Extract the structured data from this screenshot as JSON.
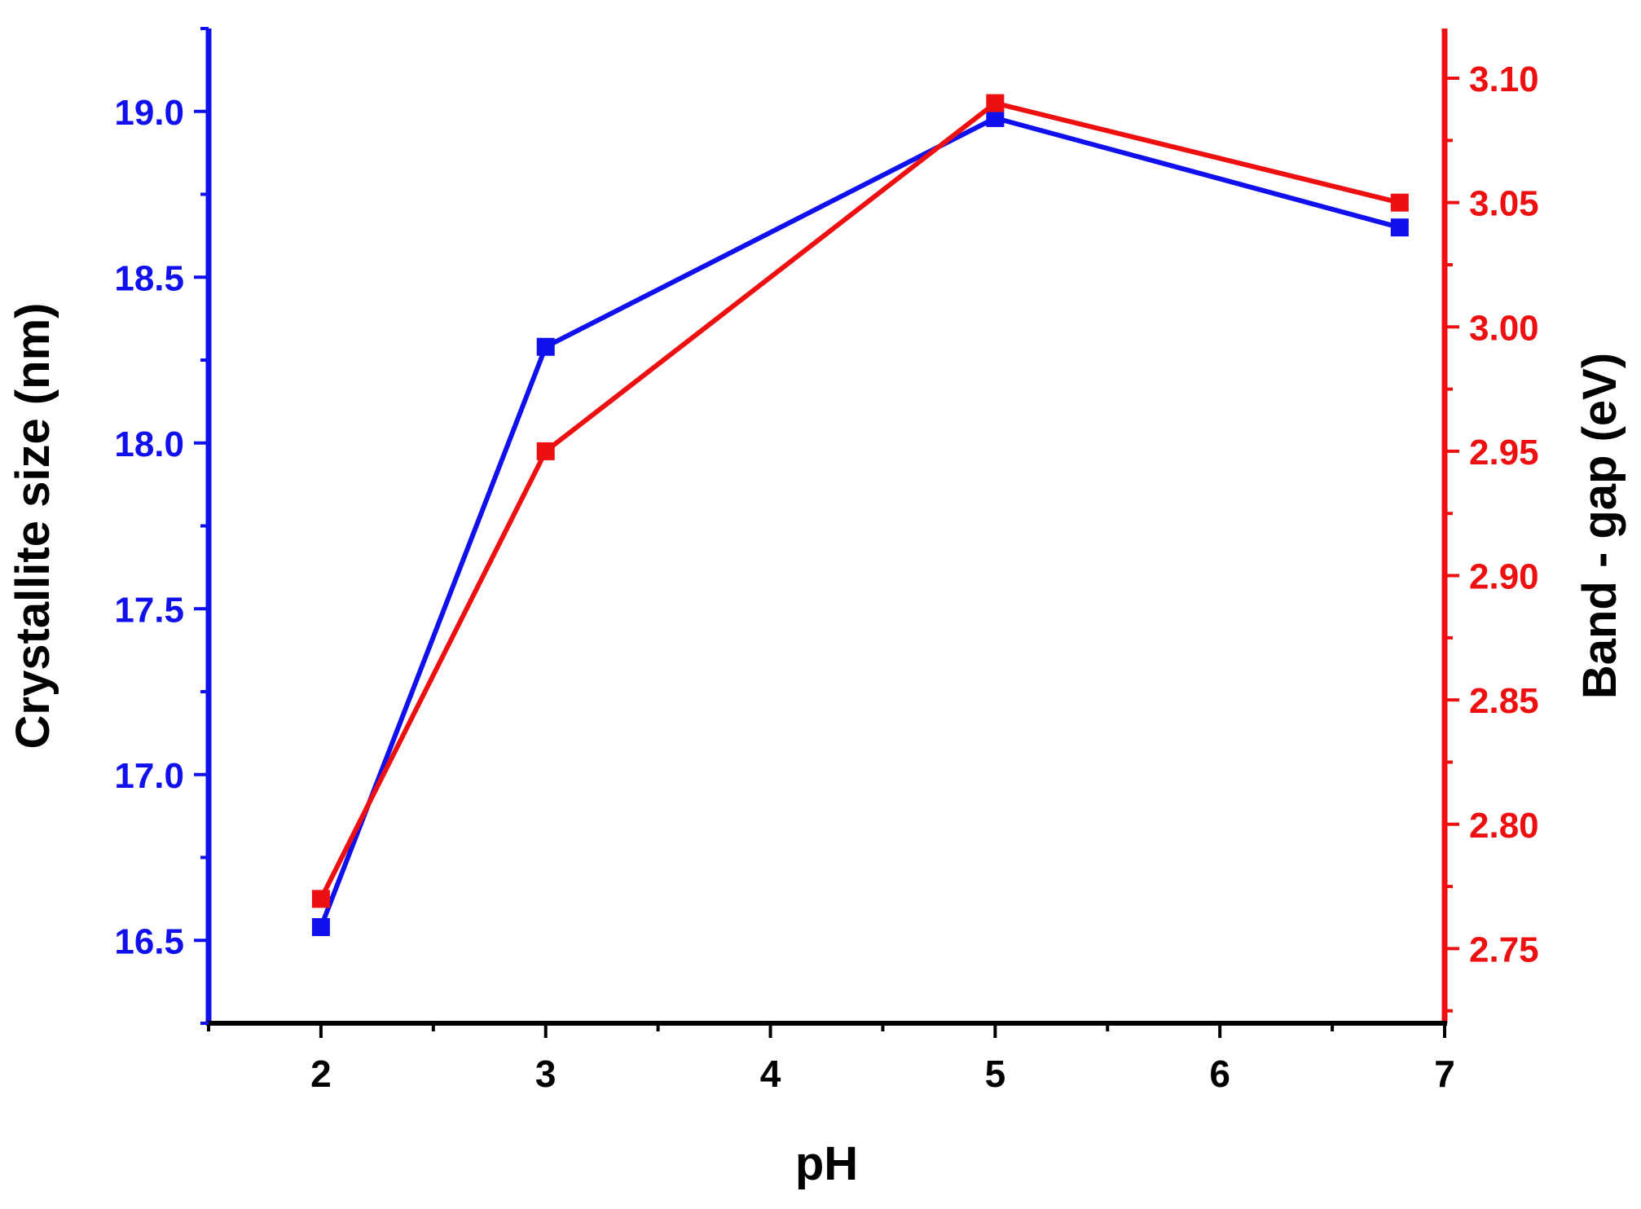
{
  "chart_data": {
    "type": "line",
    "title": "",
    "xlabel": "pH",
    "ylabel_left": "Crystallite size (nm)",
    "ylabel_right": "Band - gap (eV)",
    "xlim": [
      1.5,
      7.0
    ],
    "ylim_left": [
      16.25,
      19.25
    ],
    "ylim_right": [
      2.72,
      3.12
    ],
    "x_ticks": [
      2,
      3,
      4,
      5,
      6,
      7
    ],
    "x_tick_labels": [
      "2",
      "3",
      "4",
      "5",
      "6",
      "7"
    ],
    "y_left_ticks": [
      16.5,
      17.0,
      17.5,
      18.0,
      18.5,
      19.0
    ],
    "y_left_tick_labels": [
      "16.5",
      "17.0",
      "17.5",
      "18.0",
      "18.5",
      "19.0"
    ],
    "y_right_ticks": [
      2.75,
      2.8,
      2.85,
      2.9,
      2.95,
      3.0,
      3.05,
      3.1
    ],
    "y_right_tick_labels": [
      "2.75",
      "2.80",
      "2.85",
      "2.90",
      "2.95",
      "3.00",
      "3.05",
      "3.10"
    ],
    "grid": false,
    "series": [
      {
        "axis": "left",
        "color": "#1010ee",
        "marker": "square",
        "x": [
          2,
          3,
          5,
          6.8
        ],
        "values": [
          16.54,
          18.29,
          18.98,
          18.65
        ]
      },
      {
        "axis": "right",
        "color": "#ee1010",
        "marker": "square",
        "x": [
          2,
          3,
          5,
          6.8
        ],
        "values": [
          2.77,
          2.95,
          3.09,
          3.05
        ]
      }
    ],
    "colors": {
      "left_axis": "#1010ee",
      "right_axis": "#ee1010",
      "frame": "#000000",
      "xlabel": "#000000"
    }
  }
}
